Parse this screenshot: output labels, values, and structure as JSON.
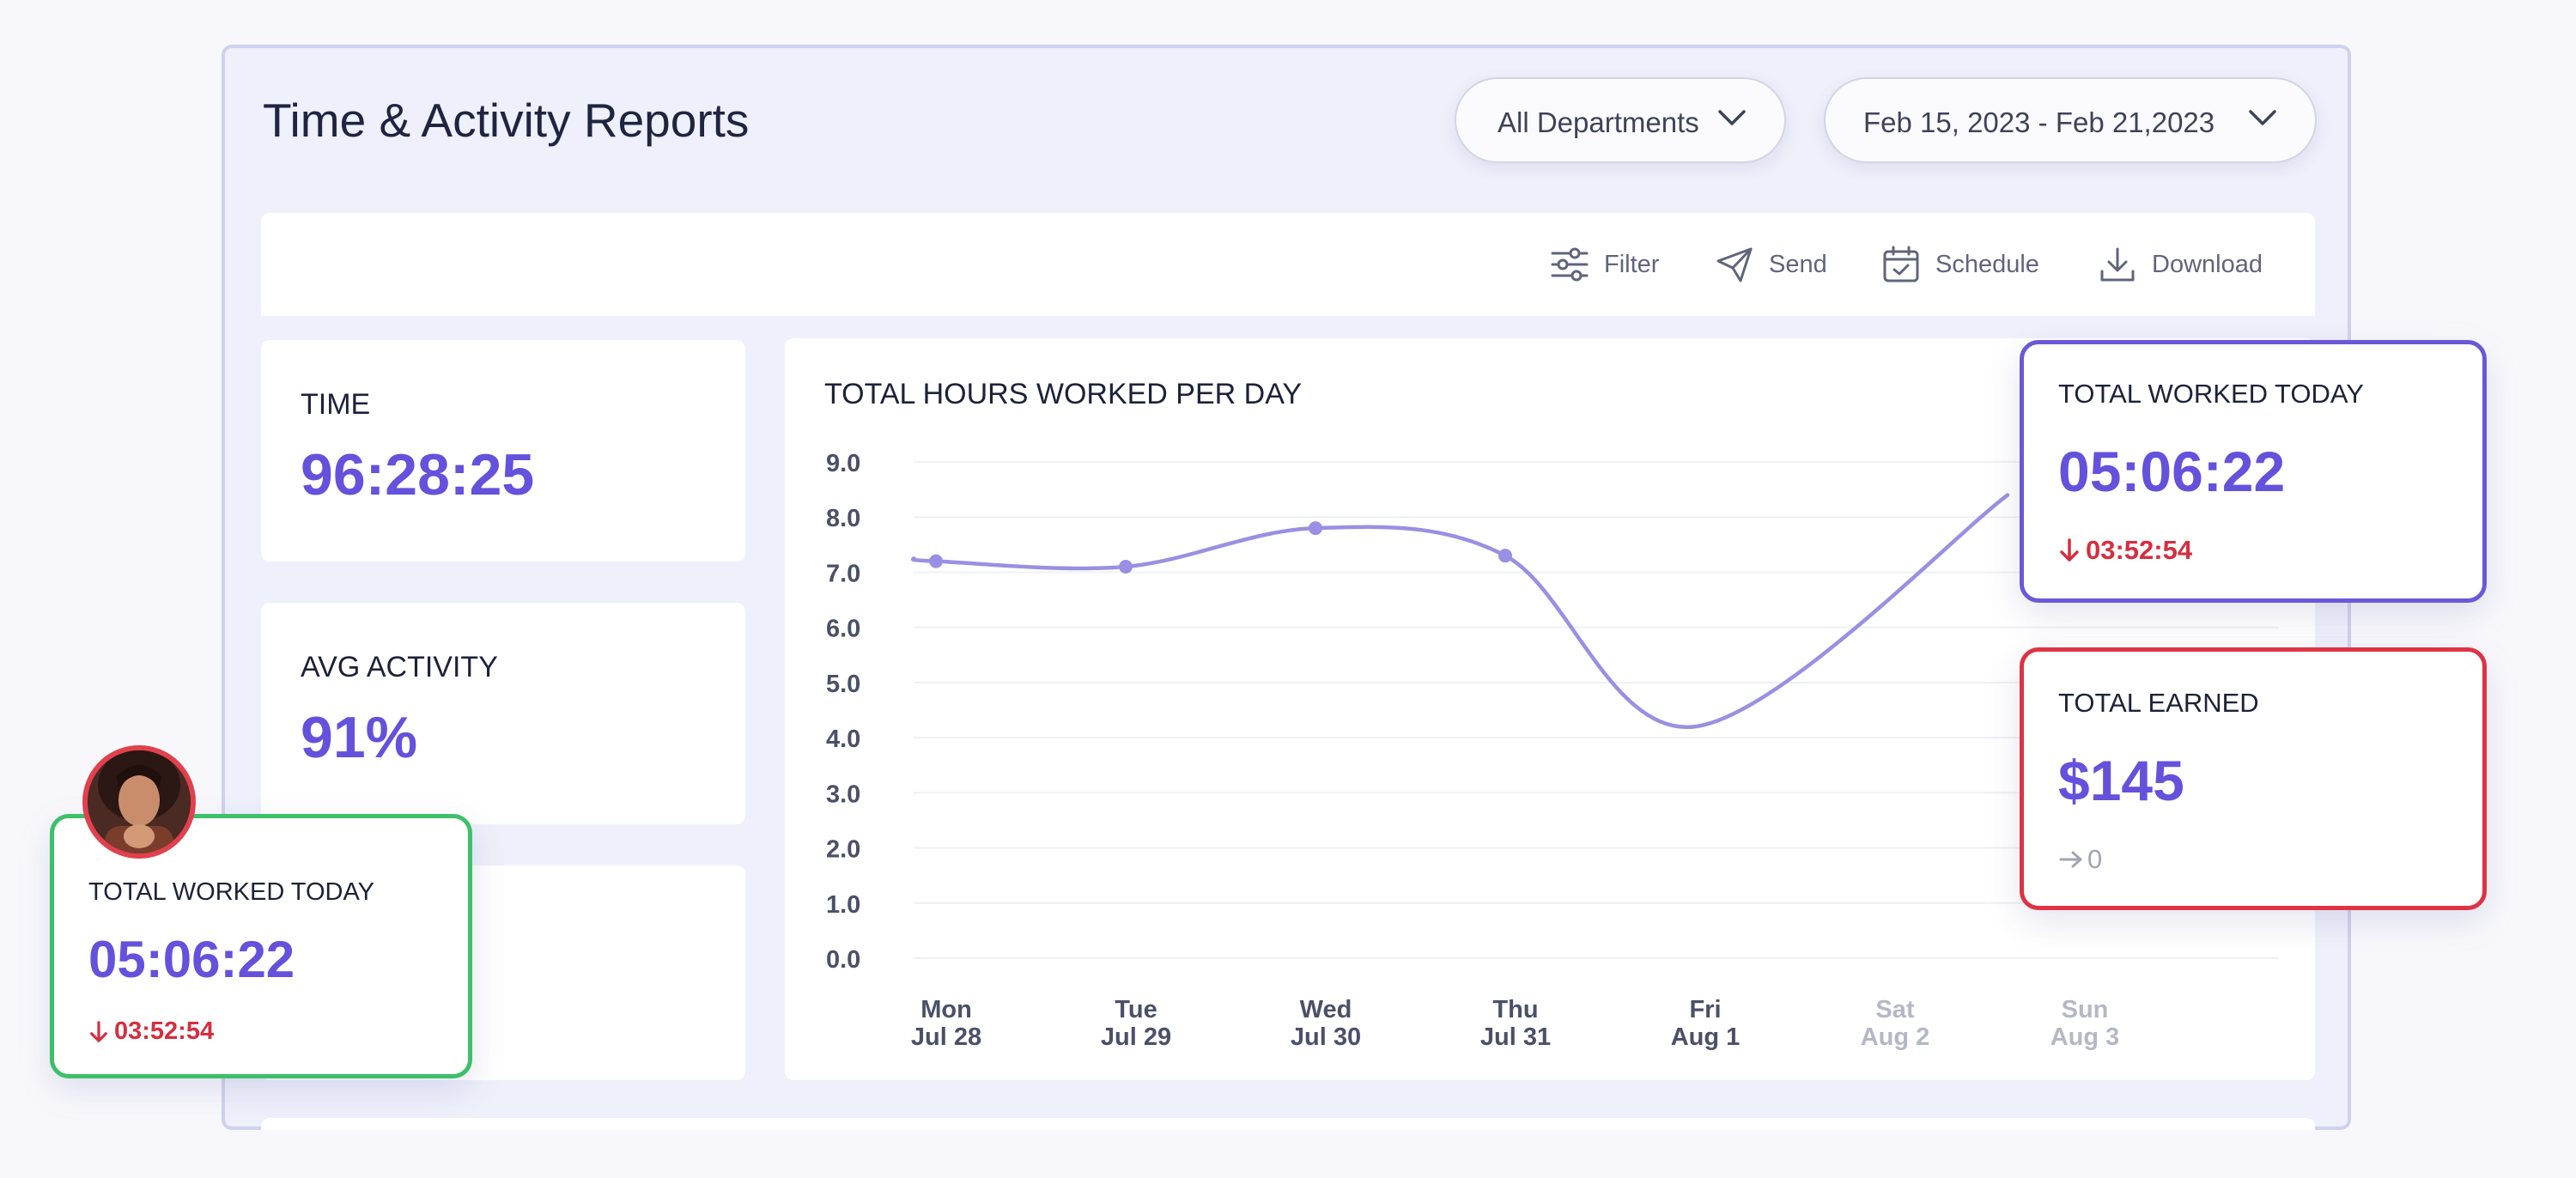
{
  "header": {
    "title": "Time & Activity Reports",
    "department_select": "All Departments",
    "date_range_select": "Feb 15, 2023 - Feb 21,2023"
  },
  "toolbar": {
    "filter": "Filter",
    "send": "Send",
    "schedule": "Schedule",
    "download": "Download"
  },
  "stats": {
    "time_label": "TIME",
    "time_value": "96:28:25",
    "activity_label": "AVG ACTIVITY",
    "activity_value": "91%"
  },
  "chart": {
    "title": "TOTAL HOURS WORKED PER DAY"
  },
  "chart_data": {
    "type": "line",
    "title": "TOTAL HOURS WORKED PER DAY",
    "x": [
      "Mon Jul 28",
      "Tue Jul 29",
      "Wed Jul 30",
      "Thu Jul 31",
      "Fri Aug 1",
      "Sat Aug 2",
      "Sun Aug 3"
    ],
    "x_days": [
      "Mon",
      "Tue",
      "Wed",
      "Thu",
      "Fri",
      "Sat",
      "Sun"
    ],
    "x_dates": [
      "Jul 28",
      "Jul 29",
      "Jul 30",
      "Jul 31",
      "Aug 1",
      "Aug 2",
      "Aug 3"
    ],
    "y_ticks": [
      "9.0",
      "8.0",
      "7.0",
      "6.0",
      "5.0",
      "4.0",
      "3.0",
      "2.0",
      "1.0",
      "0.0"
    ],
    "ylim": [
      0,
      9
    ],
    "series": [
      {
        "values": [
          7.2,
          7.1,
          7.8,
          7.3,
          4.2,
          null,
          null
        ]
      }
    ],
    "grid": true,
    "color": "#9990e3"
  },
  "cards": {
    "worked_today": {
      "title": "TOTAL WORKED TODAY",
      "value": "05:06:22",
      "delta": "03:52:54",
      "delta_icon": "arrow-down-icon",
      "border_color": "#6a58d8"
    },
    "earned": {
      "title": "TOTAL EARNED",
      "value": "$145",
      "delta": "0",
      "delta_icon": "arrow-right-icon",
      "border_color": "#dd3344"
    },
    "user_worked_today": {
      "title": "TOTAL WORKED TODAY",
      "value": "05:06:22",
      "delta": "03:52:54",
      "delta_icon": "arrow-down-icon",
      "border_color": "#3cc06a"
    }
  },
  "colors": {
    "accent": "#6451dc",
    "negative": "#d42f3f",
    "panel_bg": "#eef0fb"
  }
}
